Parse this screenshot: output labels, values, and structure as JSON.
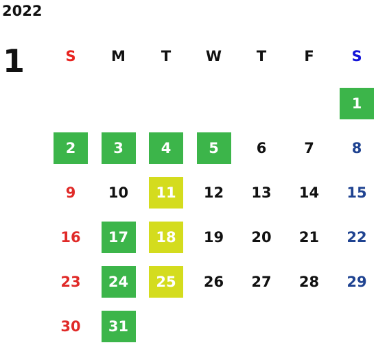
{
  "year": "2022",
  "month": "1",
  "weekdays": [
    {
      "label": "S",
      "color": "#e8231f",
      "day_color": "#e02a28"
    },
    {
      "label": "M",
      "color": "#111111",
      "day_color": "#111111"
    },
    {
      "label": "T",
      "color": "#111111",
      "day_color": "#111111"
    },
    {
      "label": "W",
      "color": "#111111",
      "day_color": "#111111"
    },
    {
      "label": "T",
      "color": "#111111",
      "day_color": "#111111"
    },
    {
      "label": "F",
      "color": "#111111",
      "day_color": "#111111"
    },
    {
      "label": "S",
      "color": "#1414d8",
      "day_color": "#1f4391"
    }
  ],
  "highlight_text_color": "#ffffff",
  "weeks": [
    [
      null,
      null,
      null,
      null,
      null,
      null,
      {
        "day": 1,
        "highlight": "#3cb54a"
      }
    ],
    [
      {
        "day": 2,
        "highlight": "#3cb54a"
      },
      {
        "day": 3,
        "highlight": "#3cb54a"
      },
      {
        "day": 4,
        "highlight": "#3cb54a"
      },
      {
        "day": 5,
        "highlight": "#3cb54a"
      },
      {
        "day": 6
      },
      {
        "day": 7
      },
      {
        "day": 8
      }
    ],
    [
      {
        "day": 9
      },
      {
        "day": 10
      },
      {
        "day": 11,
        "highlight": "#d4dc1e"
      },
      {
        "day": 12
      },
      {
        "day": 13
      },
      {
        "day": 14
      },
      {
        "day": 15
      }
    ],
    [
      {
        "day": 16
      },
      {
        "day": 17,
        "highlight": "#3cb54a"
      },
      {
        "day": 18,
        "highlight": "#d4dc1e"
      },
      {
        "day": 19
      },
      {
        "day": 20
      },
      {
        "day": 21
      },
      {
        "day": 22
      }
    ],
    [
      {
        "day": 23
      },
      {
        "day": 24,
        "highlight": "#3cb54a"
      },
      {
        "day": 25,
        "highlight": "#d4dc1e"
      },
      {
        "day": 26
      },
      {
        "day": 27
      },
      {
        "day": 28
      },
      {
        "day": 29
      }
    ],
    [
      {
        "day": 30
      },
      {
        "day": 31,
        "highlight": "#3cb54a"
      }
    ]
  ]
}
